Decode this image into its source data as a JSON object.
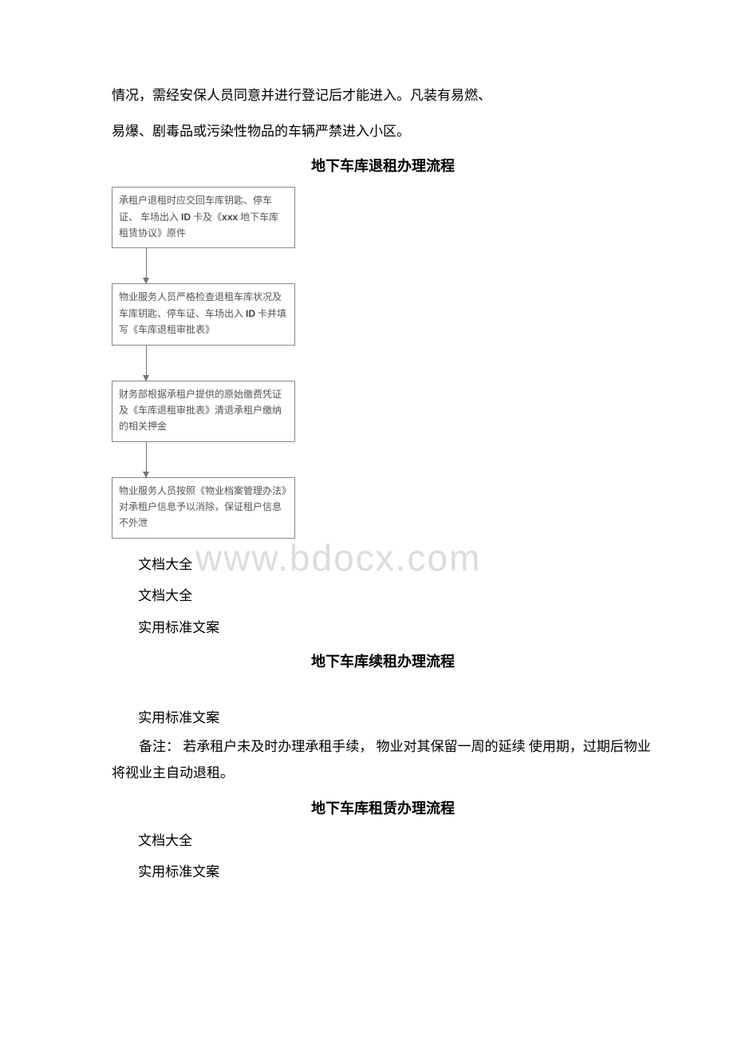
{
  "intro": {
    "line1": "情况，需经安保人员同意并进行登记后才能进入。凡装有易燃、",
    "line2": "易爆、剧毒品或污染性物品的车辆严禁进入小区。"
  },
  "heading1": "地下车库退租办理流程",
  "flowchart": {
    "nodes": [
      {
        "text": "承租户退租时应交回车库钥匙、停车证、 车场出入  <b>ID</b>  卡及《<b>xxx</b>  地下车库租赁协议》原件"
      },
      {
        "text": "物业服务人员严格检查退租车库状况及车库钥匙、停车证、车场出入   <b>ID</b>  卡并填写《车库退租审批表》"
      },
      {
        "text": "财务部根据承租户提供的原始缴费凭证及《车库退租审批表》清退承租户缴纳的相关押金"
      },
      {
        "text": "物业服务人员按照《物业档案管理办法》对承租户信息予以消除，保证租户信息不外泄"
      }
    ],
    "box_border_color": "#888888",
    "text_color": "#555555",
    "arrow_color": "#777777",
    "font_size": 12
  },
  "watermark": "www.bdocx.com",
  "footer1": "文档大全",
  "footer2": "文档大全",
  "footer3": "实用标准文案",
  "heading2": "地下车库续租办理流程",
  "footer4": "实用标准文案",
  "note": "备注： 若承租户未及时办理承租手续， 物业对其保留一周的延续 使用期，过期后物业将视业主自动退租。",
  "heading3": "地下车库租赁办理流程",
  "footer5": "文档大全",
  "footer6": "实用标准文案",
  "colors": {
    "background": "#ffffff",
    "text": "#000000",
    "watermark": "#dcdcdc"
  }
}
